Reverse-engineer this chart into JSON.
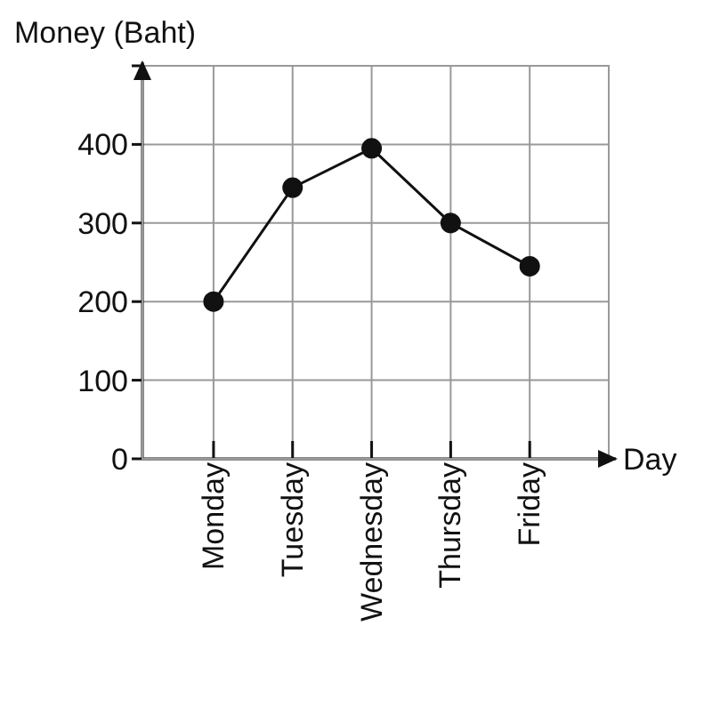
{
  "chart_data": {
    "type": "line",
    "ylabel": "Money (Baht)",
    "xlabel": "Day",
    "categories": [
      "Monday",
      "Tuesday",
      "Wednesday",
      "Thursday",
      "Friday"
    ],
    "values": [
      200,
      345,
      395,
      300,
      245
    ],
    "color": "#111111",
    "ylim": [
      0,
      500
    ],
    "yticks": [
      0,
      100,
      200,
      300,
      400,
      {
        "value": 500,
        "label": null
      }
    ],
    "grid": true,
    "marker": "circle",
    "line_style": "solid"
  }
}
